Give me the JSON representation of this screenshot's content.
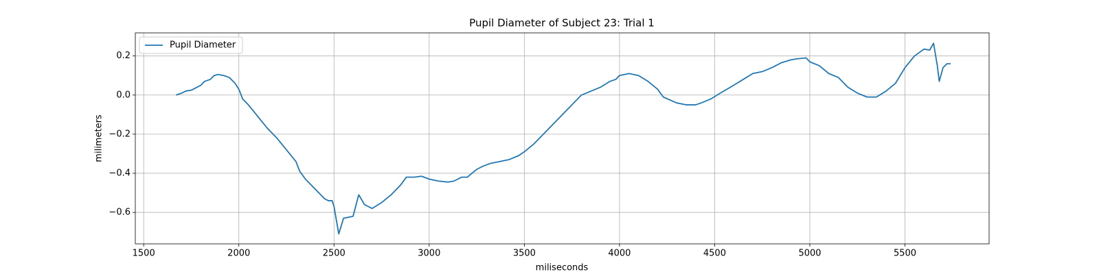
{
  "chart_data": {
    "type": "line",
    "title": "Pupil Diameter of Subject 23: Trial 1",
    "xlabel": "miliseconds",
    "ylabel": "milimeters",
    "x": [
      1670,
      1700,
      1720,
      1750,
      1800,
      1820,
      1850,
      1870,
      1890,
      1920,
      1950,
      1980,
      2000,
      2020,
      2050,
      2100,
      2150,
      2200,
      2250,
      2300,
      2320,
      2350,
      2400,
      2450,
      2470,
      2490,
      2500,
      2525,
      2550,
      2600,
      2630,
      2660,
      2700,
      2750,
      2800,
      2850,
      2880,
      2920,
      2960,
      3000,
      3050,
      3100,
      3130,
      3170,
      3200,
      3250,
      3280,
      3320,
      3370,
      3420,
      3470,
      3500,
      3550,
      3600,
      3650,
      3700,
      3750,
      3800,
      3850,
      3900,
      3950,
      3980,
      4000,
      4050,
      4100,
      4150,
      4200,
      4230,
      4300,
      4350,
      4400,
      4430,
      4480,
      4530,
      4600,
      4650,
      4700,
      4750,
      4800,
      4850,
      4900,
      4930,
      4980,
      5000,
      5050,
      5100,
      5150,
      5200,
      5250,
      5300,
      5350,
      5400,
      5450,
      5500,
      5550,
      5600,
      5630,
      5650,
      5670,
      5680,
      5700,
      5720,
      5740
    ],
    "series": [
      {
        "name": "Pupil Diameter",
        "color": "#1f77b4",
        "values": [
          0.0,
          0.01,
          0.02,
          0.025,
          0.05,
          0.07,
          0.08,
          0.1,
          0.105,
          0.1,
          0.09,
          0.06,
          0.03,
          -0.02,
          -0.05,
          -0.11,
          -0.17,
          -0.22,
          -0.28,
          -0.34,
          -0.39,
          -0.43,
          -0.48,
          -0.53,
          -0.54,
          -0.54,
          -0.57,
          -0.71,
          -0.63,
          -0.62,
          -0.51,
          -0.56,
          -0.58,
          -0.55,
          -0.51,
          -0.46,
          -0.42,
          -0.42,
          -0.415,
          -0.43,
          -0.44,
          -0.445,
          -0.44,
          -0.42,
          -0.42,
          -0.38,
          -0.365,
          -0.35,
          -0.34,
          -0.33,
          -0.31,
          -0.29,
          -0.25,
          -0.2,
          -0.15,
          -0.1,
          -0.05,
          0.0,
          0.02,
          0.04,
          0.07,
          0.08,
          0.1,
          0.11,
          0.1,
          0.07,
          0.03,
          -0.01,
          -0.04,
          -0.05,
          -0.05,
          -0.04,
          -0.02,
          0.01,
          0.05,
          0.08,
          0.11,
          0.12,
          0.14,
          0.165,
          0.18,
          0.185,
          0.19,
          0.17,
          0.15,
          0.11,
          0.09,
          0.04,
          0.01,
          -0.01,
          -0.01,
          0.02,
          0.06,
          0.14,
          0.2,
          0.235,
          0.23,
          0.265,
          0.15,
          0.07,
          0.14,
          0.16,
          0.16
        ]
      }
    ],
    "xlim": [
      1456,
      5942
    ],
    "ylim": [
      -0.761,
      0.318
    ],
    "xticks": [
      1500,
      2000,
      2500,
      3000,
      3500,
      4000,
      4500,
      5000,
      5500
    ],
    "yticks": [
      {
        "value": -0.6,
        "label": "−0.6"
      },
      {
        "value": -0.4,
        "label": "−0.4"
      },
      {
        "value": -0.2,
        "label": "−0.2"
      },
      {
        "value": 0,
        "label": "0.0"
      },
      {
        "value": 0.2,
        "label": "0.2"
      }
    ],
    "grid": true,
    "legend": "upper left"
  }
}
